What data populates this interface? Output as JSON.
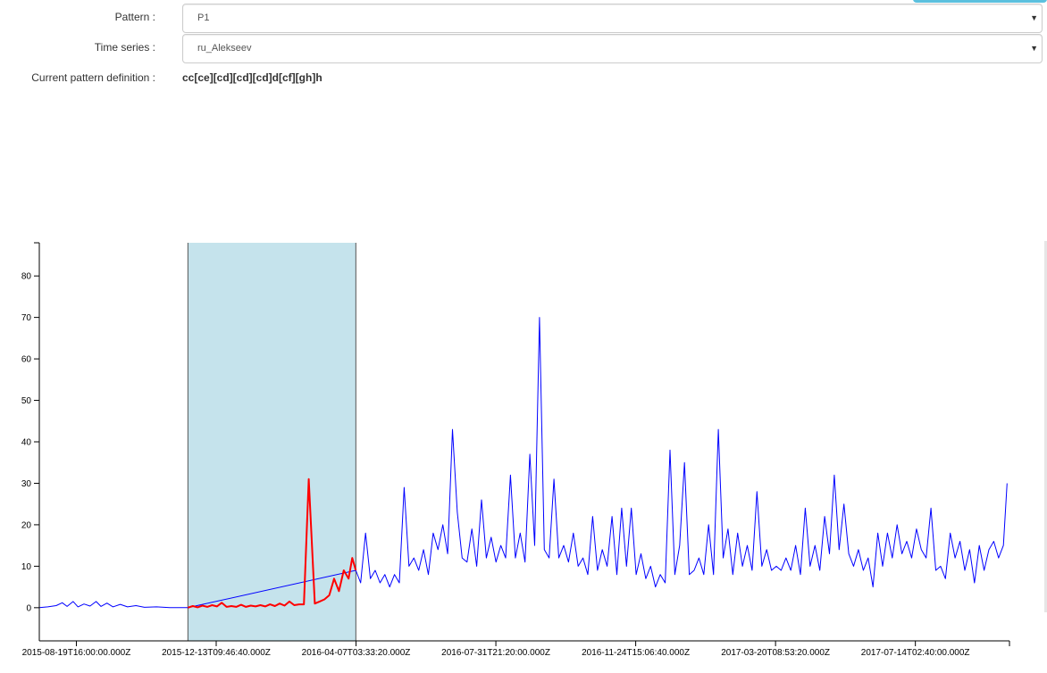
{
  "form": {
    "pattern": {
      "label": "Pattern :",
      "value": "P1"
    },
    "time_series": {
      "label": "Time series :",
      "value": "ru_Alekseev"
    },
    "definition": {
      "label": "Current pattern definition :",
      "value": "cc[ce][cd][cd][cd]d[cf][gh]h"
    },
    "caret_icon": "triangle-down-icon"
  },
  "colors": {
    "series": "#0000ff",
    "match": "#ff0000",
    "highlight": "#c5e3ec",
    "accent": "#5bc0de"
  },
  "chart_data": {
    "type": "line",
    "x_type": "datetime",
    "ylim": [
      -8,
      88
    ],
    "yticks": [
      0,
      10,
      20,
      30,
      40,
      50,
      60,
      70,
      80
    ],
    "xlim": [
      "2015-07-20T00:00:00Z",
      "2017-09-30T00:00:00Z"
    ],
    "xtick_labels": [
      "2015-08-19T16:00:00.000Z",
      "2015-12-13T09:46:40.000Z",
      "2016-04-07T03:33:20.000Z",
      "2016-07-31T21:20:00.000Z",
      "2016-11-24T15:06:40.000Z",
      "2017-03-20T08:53:20.000Z",
      "2017-07-14T02:40:00.000Z"
    ],
    "highlight_range": [
      "2015-11-20T00:00:00Z",
      "2016-04-07T00:00:00Z"
    ],
    "series": [
      {
        "points": [
          [
            "2015-07-20",
            0
          ],
          [
            "2015-07-27",
            0.2
          ],
          [
            "2015-08-03",
            0.5
          ],
          [
            "2015-08-08",
            1.2
          ],
          [
            "2015-08-12",
            0.3
          ],
          [
            "2015-08-17",
            1.5
          ],
          [
            "2015-08-21",
            0.2
          ],
          [
            "2015-08-26",
            0.9
          ],
          [
            "2015-08-31",
            0.4
          ],
          [
            "2015-09-05",
            1.5
          ],
          [
            "2015-09-09",
            0.3
          ],
          [
            "2015-09-14",
            1.1
          ],
          [
            "2015-09-19",
            0.2
          ],
          [
            "2015-09-25",
            0.8
          ],
          [
            "2015-10-01",
            0.2
          ],
          [
            "2015-10-08",
            0.5
          ],
          [
            "2015-10-15",
            0.1
          ],
          [
            "2015-10-25",
            0.2
          ],
          [
            "2015-11-05",
            0
          ],
          [
            "2015-11-20",
            0
          ],
          [
            "2016-04-07",
            9
          ],
          [
            "2016-04-11",
            6
          ],
          [
            "2016-04-15",
            18
          ],
          [
            "2016-04-19",
            7
          ],
          [
            "2016-04-23",
            9
          ],
          [
            "2016-04-27",
            6
          ],
          [
            "2016-05-01",
            8
          ],
          [
            "2016-05-05",
            5
          ],
          [
            "2016-05-09",
            8
          ],
          [
            "2016-05-13",
            6
          ],
          [
            "2016-05-17",
            29
          ],
          [
            "2016-05-21",
            10
          ],
          [
            "2016-05-25",
            12
          ],
          [
            "2016-05-29",
            9
          ],
          [
            "2016-06-02",
            14
          ],
          [
            "2016-06-06",
            8
          ],
          [
            "2016-06-10",
            18
          ],
          [
            "2016-06-14",
            14
          ],
          [
            "2016-06-18",
            20
          ],
          [
            "2016-06-22",
            13
          ],
          [
            "2016-06-26",
            43
          ],
          [
            "2016-06-30",
            23
          ],
          [
            "2016-07-04",
            12
          ],
          [
            "2016-07-08",
            11
          ],
          [
            "2016-07-12",
            19
          ],
          [
            "2016-07-16",
            10
          ],
          [
            "2016-07-20",
            26
          ],
          [
            "2016-07-24",
            12
          ],
          [
            "2016-07-28",
            17
          ],
          [
            "2016-08-01",
            11
          ],
          [
            "2016-08-05",
            15
          ],
          [
            "2016-08-09",
            12
          ],
          [
            "2016-08-13",
            32
          ],
          [
            "2016-08-17",
            12
          ],
          [
            "2016-08-21",
            18
          ],
          [
            "2016-08-25",
            11
          ],
          [
            "2016-08-29",
            37
          ],
          [
            "2016-09-02",
            15
          ],
          [
            "2016-09-06",
            70
          ],
          [
            "2016-09-10",
            14
          ],
          [
            "2016-09-14",
            12
          ],
          [
            "2016-09-18",
            31
          ],
          [
            "2016-09-22",
            12
          ],
          [
            "2016-09-26",
            15
          ],
          [
            "2016-09-30",
            11
          ],
          [
            "2016-10-04",
            18
          ],
          [
            "2016-10-08",
            10
          ],
          [
            "2016-10-12",
            12
          ],
          [
            "2016-10-16",
            8
          ],
          [
            "2016-10-20",
            22
          ],
          [
            "2016-10-24",
            9
          ],
          [
            "2016-10-28",
            14
          ],
          [
            "2016-11-01",
            10
          ],
          [
            "2016-11-05",
            22
          ],
          [
            "2016-11-09",
            8
          ],
          [
            "2016-11-13",
            24
          ],
          [
            "2016-11-17",
            10
          ],
          [
            "2016-11-21",
            24
          ],
          [
            "2016-11-25",
            8
          ],
          [
            "2016-11-29",
            13
          ],
          [
            "2016-12-03",
            7
          ],
          [
            "2016-12-07",
            10
          ],
          [
            "2016-12-11",
            5
          ],
          [
            "2016-12-15",
            8
          ],
          [
            "2016-12-19",
            6
          ],
          [
            "2016-12-23",
            38
          ],
          [
            "2016-12-27",
            8
          ],
          [
            "2016-12-31",
            15
          ],
          [
            "2017-01-04",
            35
          ],
          [
            "2017-01-08",
            8
          ],
          [
            "2017-01-12",
            9
          ],
          [
            "2017-01-16",
            12
          ],
          [
            "2017-01-20",
            8
          ],
          [
            "2017-01-24",
            20
          ],
          [
            "2017-01-28",
            8
          ],
          [
            "2017-02-01",
            43
          ],
          [
            "2017-02-05",
            12
          ],
          [
            "2017-02-09",
            19
          ],
          [
            "2017-02-13",
            8
          ],
          [
            "2017-02-17",
            18
          ],
          [
            "2017-02-21",
            10
          ],
          [
            "2017-02-25",
            15
          ],
          [
            "2017-03-01",
            9
          ],
          [
            "2017-03-05",
            28
          ],
          [
            "2017-03-09",
            10
          ],
          [
            "2017-03-13",
            14
          ],
          [
            "2017-03-17",
            9
          ],
          [
            "2017-03-21",
            10
          ],
          [
            "2017-03-25",
            9
          ],
          [
            "2017-03-29",
            12
          ],
          [
            "2017-04-02",
            9
          ],
          [
            "2017-04-06",
            15
          ],
          [
            "2017-04-10",
            8
          ],
          [
            "2017-04-14",
            24
          ],
          [
            "2017-04-18",
            10
          ],
          [
            "2017-04-22",
            15
          ],
          [
            "2017-04-26",
            9
          ],
          [
            "2017-04-30",
            22
          ],
          [
            "2017-05-04",
            13
          ],
          [
            "2017-05-08",
            32
          ],
          [
            "2017-05-12",
            14
          ],
          [
            "2017-05-16",
            25
          ],
          [
            "2017-05-20",
            13
          ],
          [
            "2017-05-24",
            10
          ],
          [
            "2017-05-28",
            14
          ],
          [
            "2017-06-01",
            9
          ],
          [
            "2017-06-05",
            12
          ],
          [
            "2017-06-09",
            5
          ],
          [
            "2017-06-13",
            18
          ],
          [
            "2017-06-17",
            10
          ],
          [
            "2017-06-21",
            18
          ],
          [
            "2017-06-25",
            12
          ],
          [
            "2017-06-29",
            20
          ],
          [
            "2017-07-03",
            13
          ],
          [
            "2017-07-07",
            16
          ],
          [
            "2017-07-11",
            12
          ],
          [
            "2017-07-15",
            19
          ],
          [
            "2017-07-19",
            14
          ],
          [
            "2017-07-23",
            12
          ],
          [
            "2017-07-27",
            24
          ],
          [
            "2017-07-31",
            9
          ],
          [
            "2017-08-04",
            10
          ],
          [
            "2017-08-08",
            7
          ],
          [
            "2017-08-12",
            18
          ],
          [
            "2017-08-16",
            12
          ],
          [
            "2017-08-20",
            16
          ],
          [
            "2017-08-24",
            9
          ],
          [
            "2017-08-28",
            14
          ],
          [
            "2017-09-01",
            6
          ],
          [
            "2017-09-05",
            15
          ],
          [
            "2017-09-09",
            9
          ],
          [
            "2017-09-13",
            14
          ],
          [
            "2017-09-17",
            16
          ],
          [
            "2017-09-21",
            12
          ],
          [
            "2017-09-25",
            15
          ],
          [
            "2017-09-28",
            30
          ]
        ]
      },
      {
        "points": [
          [
            "2015-11-20",
            0
          ],
          [
            "2015-11-24",
            0.4
          ],
          [
            "2015-11-28",
            0.1
          ],
          [
            "2015-12-02",
            0.5
          ],
          [
            "2015-12-06",
            0.2
          ],
          [
            "2015-12-10",
            0.6
          ],
          [
            "2015-12-14",
            0.3
          ],
          [
            "2015-12-18",
            1.2
          ],
          [
            "2015-12-22",
            0.2
          ],
          [
            "2015-12-26",
            0.4
          ],
          [
            "2015-12-30",
            0.2
          ],
          [
            "2016-01-03",
            0.7
          ],
          [
            "2016-01-07",
            0.2
          ],
          [
            "2016-01-11",
            0.5
          ],
          [
            "2016-01-15",
            0.3
          ],
          [
            "2016-01-19",
            0.6
          ],
          [
            "2016-01-23",
            0.3
          ],
          [
            "2016-01-27",
            0.8
          ],
          [
            "2016-01-31",
            0.4
          ],
          [
            "2016-02-04",
            1
          ],
          [
            "2016-02-08",
            0.5
          ],
          [
            "2016-02-12",
            1.5
          ],
          [
            "2016-02-16",
            0.6
          ],
          [
            "2016-02-20",
            0.8
          ],
          [
            "2016-02-24",
            0.8
          ],
          [
            "2016-02-28",
            31
          ],
          [
            "2016-03-04",
            1
          ],
          [
            "2016-03-08",
            1.5
          ],
          [
            "2016-03-12",
            2
          ],
          [
            "2016-03-16",
            3
          ],
          [
            "2016-03-20",
            7
          ],
          [
            "2016-03-24",
            4
          ],
          [
            "2016-03-28",
            9
          ],
          [
            "2016-04-01",
            7
          ],
          [
            "2016-04-04",
            12
          ],
          [
            "2016-04-07",
            9
          ]
        ]
      }
    ]
  }
}
